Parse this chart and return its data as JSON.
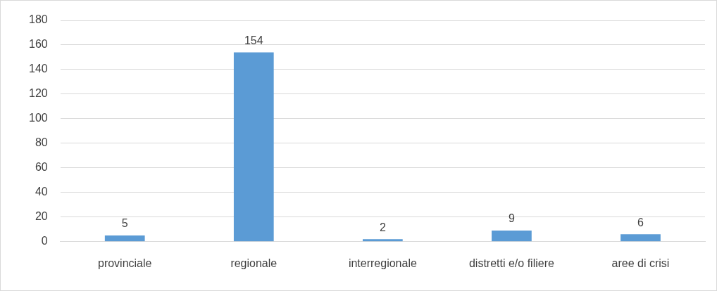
{
  "chart_data": {
    "type": "bar",
    "categories": [
      "provinciale",
      "regionale",
      "interregionale",
      "distretti e/o filiere",
      "aree di crisi"
    ],
    "values": [
      5,
      154,
      2,
      9,
      6
    ],
    "color": "#5b9bd5",
    "ylim": [
      0,
      180
    ],
    "yticks": [
      0,
      20,
      40,
      60,
      80,
      100,
      120,
      140,
      160,
      180
    ],
    "grid": "y",
    "data_labels": true,
    "legend": false
  }
}
